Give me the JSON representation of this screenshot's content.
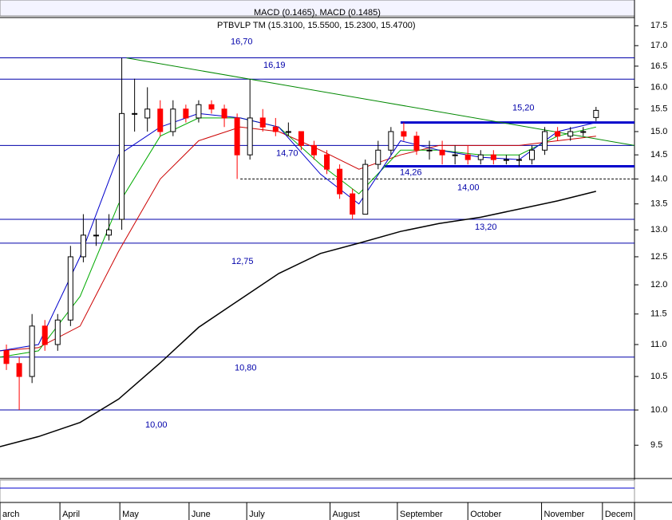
{
  "chart_data": {
    "type": "candlestick",
    "title": "PTBVLP TM (15.3100, 15.5500, 15.2300, 15.4700)",
    "indicator_label": "MACD (0.1465), MACD (0.1485)",
    "log_scale": true,
    "xlim": [
      0,
      198
    ],
    "xticks": [
      {
        "value": 0,
        "label": "arch"
      },
      {
        "value": 18.7,
        "label": "April"
      },
      {
        "value": 37.4,
        "label": "May"
      },
      {
        "value": 59,
        "label": "June"
      },
      {
        "value": 77,
        "label": "July"
      },
      {
        "value": 103,
        "label": "August"
      },
      {
        "value": 124,
        "label": "September"
      },
      {
        "value": 146,
        "label": "October"
      },
      {
        "value": 169,
        "label": "November"
      },
      {
        "value": 188,
        "label": "Decem"
      }
    ],
    "ylim": [
      9.05,
      17.71
    ],
    "yticks": [
      17.5,
      {
        "value": 17,
        "label": "17.0"
      },
      16.5,
      {
        "value": 16,
        "label": "16.0"
      },
      15.5,
      {
        "value": 15,
        "label": "15.0"
      },
      14.5,
      {
        "value": 14,
        "label": "14.0"
      },
      13.5,
      {
        "value": 13,
        "label": "13.0"
      },
      12.5,
      {
        "value": 12,
        "label": "12.0"
      },
      11.5,
      {
        "value": 11,
        "label": "11.0"
      },
      10.5,
      {
        "value": 10,
        "label": "10.0"
      },
      9.5
    ],
    "up_color": "#ffffff",
    "down_color": "#ff0000",
    "candles": {
      "x": [
        2,
        6,
        10,
        14,
        18,
        22,
        26,
        30,
        34,
        38,
        42,
        46,
        50,
        54,
        58,
        62,
        66,
        70,
        74,
        78,
        82,
        86,
        90,
        94,
        98,
        102,
        106,
        110,
        114,
        118,
        122,
        126,
        130,
        134,
        138,
        142,
        146,
        150,
        154,
        158,
        162,
        166,
        170,
        174,
        178,
        182,
        186
      ],
      "open": [
        10.9,
        10.7,
        10.5,
        11.3,
        11.0,
        11.4,
        12.5,
        12.9,
        12.9,
        13.2,
        15.4,
        15.3,
        15.5,
        15.0,
        15.5,
        15.3,
        15.6,
        15.5,
        15.3,
        14.5,
        15.3,
        15.1,
        15.0,
        15.0,
        14.7,
        14.5,
        14.2,
        13.7,
        13.3,
        14.3,
        14.6,
        15.0,
        14.9,
        14.6,
        14.6,
        14.5,
        14.5,
        14.4,
        14.5,
        14.4,
        14.4,
        14.4,
        14.6,
        15.0,
        14.9,
        15.0,
        15.31
      ],
      "high": [
        11.0,
        10.8,
        11.5,
        11.4,
        11.5,
        12.7,
        13.3,
        13.2,
        13.3,
        16.7,
        16.2,
        16.0,
        15.7,
        15.7,
        15.6,
        15.7,
        15.7,
        15.6,
        15.4,
        16.19,
        15.5,
        15.3,
        15.2,
        15.0,
        14.8,
        14.6,
        14.3,
        13.8,
        14.4,
        14.8,
        15.1,
        15.2,
        15.0,
        14.8,
        14.8,
        14.7,
        14.7,
        14.6,
        14.6,
        14.5,
        14.5,
        14.7,
        15.1,
        15.1,
        15.1,
        15.1,
        15.55
      ],
      "low": [
        10.6,
        10.0,
        10.4,
        10.9,
        10.9,
        11.3,
        12.4,
        12.7,
        12.8,
        13.0,
        15.0,
        15.0,
        14.9,
        14.9,
        15.2,
        15.2,
        15.4,
        15.1,
        14.0,
        14.4,
        15.0,
        14.9,
        14.9,
        14.6,
        14.4,
        14.1,
        13.6,
        13.2,
        13.3,
        14.2,
        14.5,
        14.8,
        14.5,
        14.4,
        14.3,
        14.3,
        14.3,
        14.3,
        14.3,
        14.3,
        14.26,
        14.3,
        14.5,
        14.8,
        14.8,
        14.9,
        15.23
      ],
      "close": [
        10.7,
        10.5,
        11.3,
        11.0,
        11.4,
        12.5,
        12.9,
        12.9,
        13.0,
        15.4,
        15.4,
        15.5,
        15.0,
        15.5,
        15.3,
        15.6,
        15.5,
        15.3,
        14.5,
        15.3,
        15.1,
        15.0,
        15.0,
        14.7,
        14.5,
        14.2,
        13.7,
        13.3,
        14.3,
        14.6,
        15.0,
        14.9,
        14.6,
        14.6,
        14.5,
        14.5,
        14.4,
        14.5,
        14.4,
        14.4,
        14.4,
        14.6,
        15.0,
        14.9,
        15.0,
        15.0,
        15.47
      ]
    },
    "moving_averages": {
      "x": [
        0,
        12,
        25,
        37,
        50,
        62,
        75,
        87,
        100,
        112,
        125,
        137,
        150,
        162,
        174,
        186
      ],
      "series": [
        {
          "color": "#000000",
          "values": [
            9.48,
            9.62,
            9.82,
            10.16,
            10.71,
            11.28,
            11.75,
            12.2,
            12.56,
            12.75,
            12.97,
            13.12,
            13.24,
            13.4,
            13.56,
            13.75
          ]
        },
        {
          "color": "#cc0000",
          "values": [
            10.9,
            10.95,
            11.3,
            12.6,
            14.0,
            14.8,
            15.1,
            15.0,
            14.6,
            14.2,
            14.5,
            14.7,
            14.7,
            14.7,
            14.8,
            14.9
          ]
        },
        {
          "color": "#00aa00",
          "values": [
            10.8,
            10.9,
            11.8,
            13.5,
            14.9,
            15.3,
            15.3,
            15.1,
            14.3,
            13.7,
            14.6,
            14.6,
            14.5,
            14.5,
            14.9,
            15.1
          ]
        },
        {
          "color": "#0000cc",
          "values": [
            10.9,
            11.0,
            12.5,
            14.5,
            15.1,
            15.4,
            15.3,
            15.1,
            14.1,
            13.5,
            14.8,
            14.6,
            14.45,
            14.4,
            15.0,
            15.2
          ]
        }
      ]
    },
    "trendline": {
      "color": "#008800",
      "x": [
        39.5,
        198
      ],
      "values": [
        16.7,
        14.7
      ]
    },
    "levels": [
      {
        "value": 16.7,
        "label": "16,70",
        "style": "thin",
        "x_start": 0
      },
      {
        "value": 16.19,
        "label": "16,19",
        "style": "thin",
        "x_start": 0
      },
      {
        "value": 15.2,
        "label": "15,20",
        "style": "thick",
        "x_start": 125
      },
      {
        "value": 14.7,
        "label": "14,70",
        "style": "thin",
        "x_start": 0
      },
      {
        "value": 14.26,
        "label": "14,26",
        "style": "thick",
        "x_start": 120
      },
      {
        "value": 14.0,
        "label": "14,00",
        "style": "dashed",
        "x_start": 75
      },
      {
        "value": 13.2,
        "label": "13,20",
        "style": "thin",
        "x_start": 0
      },
      {
        "value": 12.75,
        "label": "12,75",
        "style": "thin",
        "x_start": 0
      },
      {
        "value": 10.8,
        "label": "10,80",
        "style": "thin",
        "x_start": 0
      },
      {
        "value": 10.0,
        "label": "10,00",
        "style": "thin",
        "x_start": 0
      }
    ]
  }
}
